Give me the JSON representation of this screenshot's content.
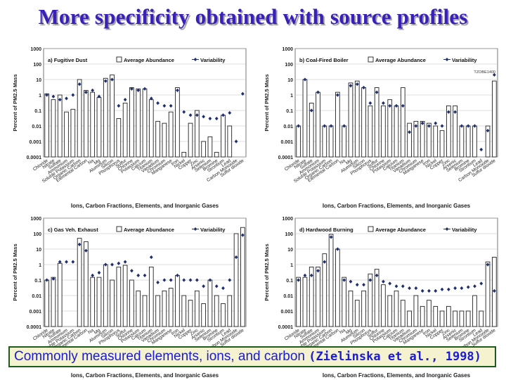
{
  "title": "More specificity obtained with source profiles",
  "caption": {
    "text": "Commonly measured elements, ions, and carbon",
    "citation": "(Zielinska et al., 1998)"
  },
  "colors": {
    "title": "#3a1fb8",
    "caption_text": "#1b1bd0",
    "caption_bg": "#f4f2cf",
    "caption_border": "#1e5c1e",
    "marker": "#1f2f6e"
  },
  "chart_data": [
    {
      "type": "bar",
      "title": "a) Fugitive Dust",
      "stamp": "",
      "ylabel": "Percent of PM2.5 Mass",
      "xlabel": "Ions, Carbon Fractions, Elements, and Inorganic Gases",
      "yscale": "log",
      "ylim": [
        0.0001,
        1000
      ],
      "yticks": [
        "0.0001",
        "0.001",
        "0.01",
        "0.1",
        "1",
        "10",
        "100",
        "1000"
      ],
      "categories": [
        "Chloride",
        "Nitrate",
        "Sulfate",
        "Ammonium",
        "Soluble Potassium",
        "Organic Carbon",
        "Elemental Carbon",
        "Na",
        "Mg",
        "Aluminum",
        "Silicon",
        "Phosphorus",
        "Sulfur",
        "Chlorine",
        "Potassium",
        "Calcium",
        "Titanium",
        "Vanadium",
        "Chromium",
        "Manganese",
        "Iron",
        "Nickel",
        "Copper",
        "Zinc",
        "Arsenic",
        "Selenium",
        "Bromine",
        "Strontium",
        "Lead",
        "Carbon Monoxide",
        "Sulfur dioxide"
      ],
      "series": [
        {
          "name": "Average Abundance",
          "values": [
            1.2,
            0.5,
            1.0,
            0.08,
            0.12,
            10,
            2,
            1.5,
            0.7,
            12,
            20,
            0.03,
            0.3,
            3,
            2.5,
            2.5,
            0.5,
            0.02,
            0.015,
            0.08,
            3,
            0.0002,
            0.015,
            0.1,
            0.001,
            0.002,
            0.0002,
            0.05,
            0.01,
            null,
            null
          ]
        },
        {
          "name": "Variability",
          "values": [
            1.0,
            0.8,
            0.5,
            0.6,
            1.0,
            5,
            1.5,
            2,
            0.8,
            8,
            10,
            0.2,
            0.5,
            2.5,
            2.0,
            2.5,
            0.6,
            0.3,
            0.2,
            0.2,
            2,
            0.08,
            0.05,
            0.05,
            0.04,
            0.03,
            0.03,
            0.05,
            0.07,
            0.001,
            1.2
          ]
        }
      ]
    },
    {
      "type": "bar",
      "title": "b) Coal-Fired Boiler",
      "stamp": "TZOBE1400",
      "ylabel": "Percent of PM2.5 Mass",
      "xlabel": "Ions, Carbon Fractions, Elements, and Inorganic Gases",
      "yscale": "log",
      "ylim": [
        0.0001,
        1000
      ],
      "yticks": [
        "0.0001",
        "0.001",
        "0.01",
        "0.1",
        "1",
        "10",
        "100",
        "1000"
      ],
      "categories": [
        "Chloride",
        "Nitrate",
        "Sulfate",
        "Ammonium",
        "Soluble Potassium",
        "Organic Carbon",
        "Elemental Carbon",
        "Na",
        "Mg",
        "Aluminum",
        "Silicon",
        "Phosphorus",
        "Sulfur",
        "Chlorine",
        "Potassium",
        "Calcium",
        "Titanium",
        "Vanadium",
        "Chromium",
        "Manganese",
        "Iron",
        "Nickel",
        "Copper",
        "Zinc",
        "Arsenic",
        "Selenium",
        "Bromine",
        "Strontium",
        "Lead",
        "Carbon Monoxide",
        "Sulfur dioxide"
      ],
      "series": [
        {
          "name": "Average Abundance",
          "values": [
            0.01,
            10,
            0.3,
            1.5,
            0.01,
            0.01,
            1.5,
            0.01,
            6,
            8,
            3,
            0.2,
            3,
            0.2,
            0.5,
            0.2,
            3,
            0.015,
            0.02,
            0.02,
            0.015,
            0.01,
            0.005,
            0.2,
            0.2,
            0.01,
            0.01,
            0.01,
            0.0001,
            0.01,
            8
          ]
        },
        {
          "name": "Variability",
          "values": [
            0.01,
            10,
            0.1,
            1.5,
            0.01,
            0.01,
            1.0,
            0.01,
            4,
            5,
            3,
            0.3,
            1.5,
            0.3,
            0.2,
            0.2,
            0.2,
            0.004,
            0.01,
            0.015,
            0.01,
            0.015,
            0.01,
            0.08,
            0.08,
            0.01,
            0.01,
            0.01,
            0.0003,
            0.005,
            20
          ]
        }
      ]
    },
    {
      "type": "bar",
      "title": "c) Gas Veh. Exhaust",
      "stamp": "",
      "ylabel": "Percent of PM2.5 Mass",
      "xlabel": "Ions, Carbon Fractions, Elements, and Inorganic Gases",
      "yscale": "log",
      "ylim": [
        0.0001,
        1000
      ],
      "yticks": [
        "0.0001",
        "0.001",
        "0.01",
        "0.1",
        "1",
        "10",
        "100",
        "1000"
      ],
      "categories": [
        "Chloride",
        "Nitrate",
        "Sulfate",
        "Ammonium",
        "Soluble Potassium",
        "Organic Carbon",
        "Elemental Carbon",
        "Na",
        "Mg",
        "Aluminum",
        "Silicon",
        "Phosphorus",
        "Sulfur",
        "Chlorine",
        "Potassium",
        "Calcium",
        "Titanium",
        "Vanadium",
        "Chromium",
        "Manganese",
        "Iron",
        "Nickel",
        "Copper",
        "Zinc",
        "Arsenic",
        "Selenium",
        "Bromine",
        "Strontium",
        "Lead",
        "Carbon Monoxide",
        "Sulfur dioxide"
      ],
      "series": [
        {
          "name": "Average Abundance",
          "values": [
            0.1,
            0.15,
            1.2,
            null,
            null,
            50,
            30,
            0.15,
            0.15,
            1,
            0.1,
            0.7,
            0.9,
            0.1,
            0.02,
            0.01,
            0.7,
            0.01,
            0.02,
            0.03,
            0.2,
            0.01,
            0.005,
            0.02,
            0.003,
            0.1,
            0.01,
            0.003,
            0.01,
            100,
            250
          ]
        },
        {
          "name": "Variability",
          "values": [
            0.1,
            0.12,
            1.5,
            1.5,
            1.5,
            20,
            8,
            0.2,
            0.3,
            1,
            1,
            1.2,
            1.5,
            0.4,
            0.2,
            0.2,
            3,
            0.07,
            0.1,
            0.1,
            0.2,
            0.1,
            0.1,
            0.1,
            0.04,
            0.1,
            0.04,
            0.03,
            0.1,
            3,
            80
          ]
        }
      ]
    },
    {
      "type": "bar",
      "title": "d) Hardwood Burning",
      "stamp": "",
      "ylabel": "Percent of PM2.5 Mass",
      "xlabel": "Ions, Carbon Fractions, Elements, and Inorganic Gases",
      "yscale": "log",
      "ylim": [
        0.0001,
        1000
      ],
      "yticks": [
        "0.0001",
        "0.001",
        "0.01",
        "0.1",
        "1",
        "10",
        "100",
        "1000"
      ],
      "categories": [
        "Chloride",
        "Nitrate",
        "Sulfate",
        "Ammonium",
        "Soluble Potassium",
        "Organic Carbon",
        "Elemental Carbon",
        "Na",
        "Mg",
        "Aluminum",
        "Silicon",
        "Phosphorus",
        "Sulfur",
        "Chlorine",
        "Potassium",
        "Calcium",
        "Titanium",
        "Vanadium",
        "Chromium",
        "Manganese",
        "Iron",
        "Nickel",
        "Copper",
        "Zinc",
        "Arsenic",
        "Selenium",
        "Bromine",
        "Strontium",
        "Lead",
        "Carbon Monoxide",
        "Sulfur dioxide"
      ],
      "series": [
        {
          "name": "Average Abundance",
          "values": [
            0.15,
            0.15,
            0.7,
            0.7,
            5,
            90,
            10,
            0.15,
            0.02,
            0.005,
            0.02,
            0.25,
            0.5,
            0.05,
            0.01,
            0.02,
            0.005,
            0.001,
            0.01,
            0.002,
            0.005,
            0.002,
            0.001,
            0.002,
            0.001,
            0.001,
            0.001,
            0.01,
            0.001,
            1.5,
            3
          ]
        },
        {
          "name": "Variability",
          "values": [
            0.1,
            0.2,
            0.2,
            0.4,
            1.5,
            60,
            10,
            0.1,
            0.08,
            0.05,
            0.05,
            0.1,
            0.2,
            0.08,
            0.06,
            0.04,
            0.04,
            0.03,
            0.03,
            0.02,
            0.02,
            0.02,
            0.025,
            0.025,
            0.03,
            0.03,
            0.035,
            0.04,
            0.06,
            1,
            0.02
          ]
        }
      ]
    }
  ]
}
